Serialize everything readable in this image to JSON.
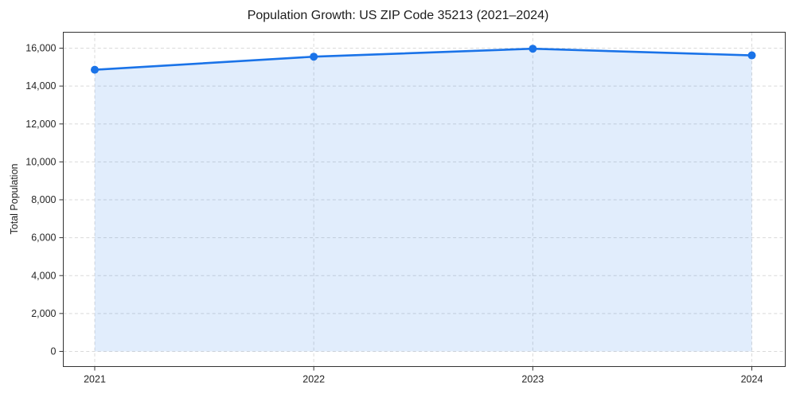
{
  "chart_data": {
    "type": "line",
    "title": "Population Growth: US ZIP Code 35213 (2021–2024)",
    "xlabel": "",
    "ylabel": "Total Population",
    "x": [
      2021,
      2022,
      2023,
      2024
    ],
    "categories": [
      "2021",
      "2022",
      "2023",
      "2024"
    ],
    "series": [
      {
        "name": "Total Population",
        "values": [
          14860,
          15550,
          15970,
          15620
        ]
      }
    ],
    "area_fill_to": 0,
    "ylim": [
      -800,
      16840
    ],
    "yticks": [
      0,
      2000,
      4000,
      6000,
      8000,
      10000,
      12000,
      14000,
      16000
    ],
    "ytick_labels": [
      "0",
      "2,000",
      "4,000",
      "6,000",
      "8,000",
      "10,000",
      "12,000",
      "14,000",
      "16,000"
    ],
    "grid": true,
    "grid_style": "dashed",
    "legend": "none",
    "colors": {
      "line": "#1a73e8",
      "marker": "#1a73e8",
      "area_fill": "rgba(26,115,232,0.13)",
      "grid": "#d9d9d9",
      "spine": "#333333",
      "text": "#262626"
    }
  }
}
